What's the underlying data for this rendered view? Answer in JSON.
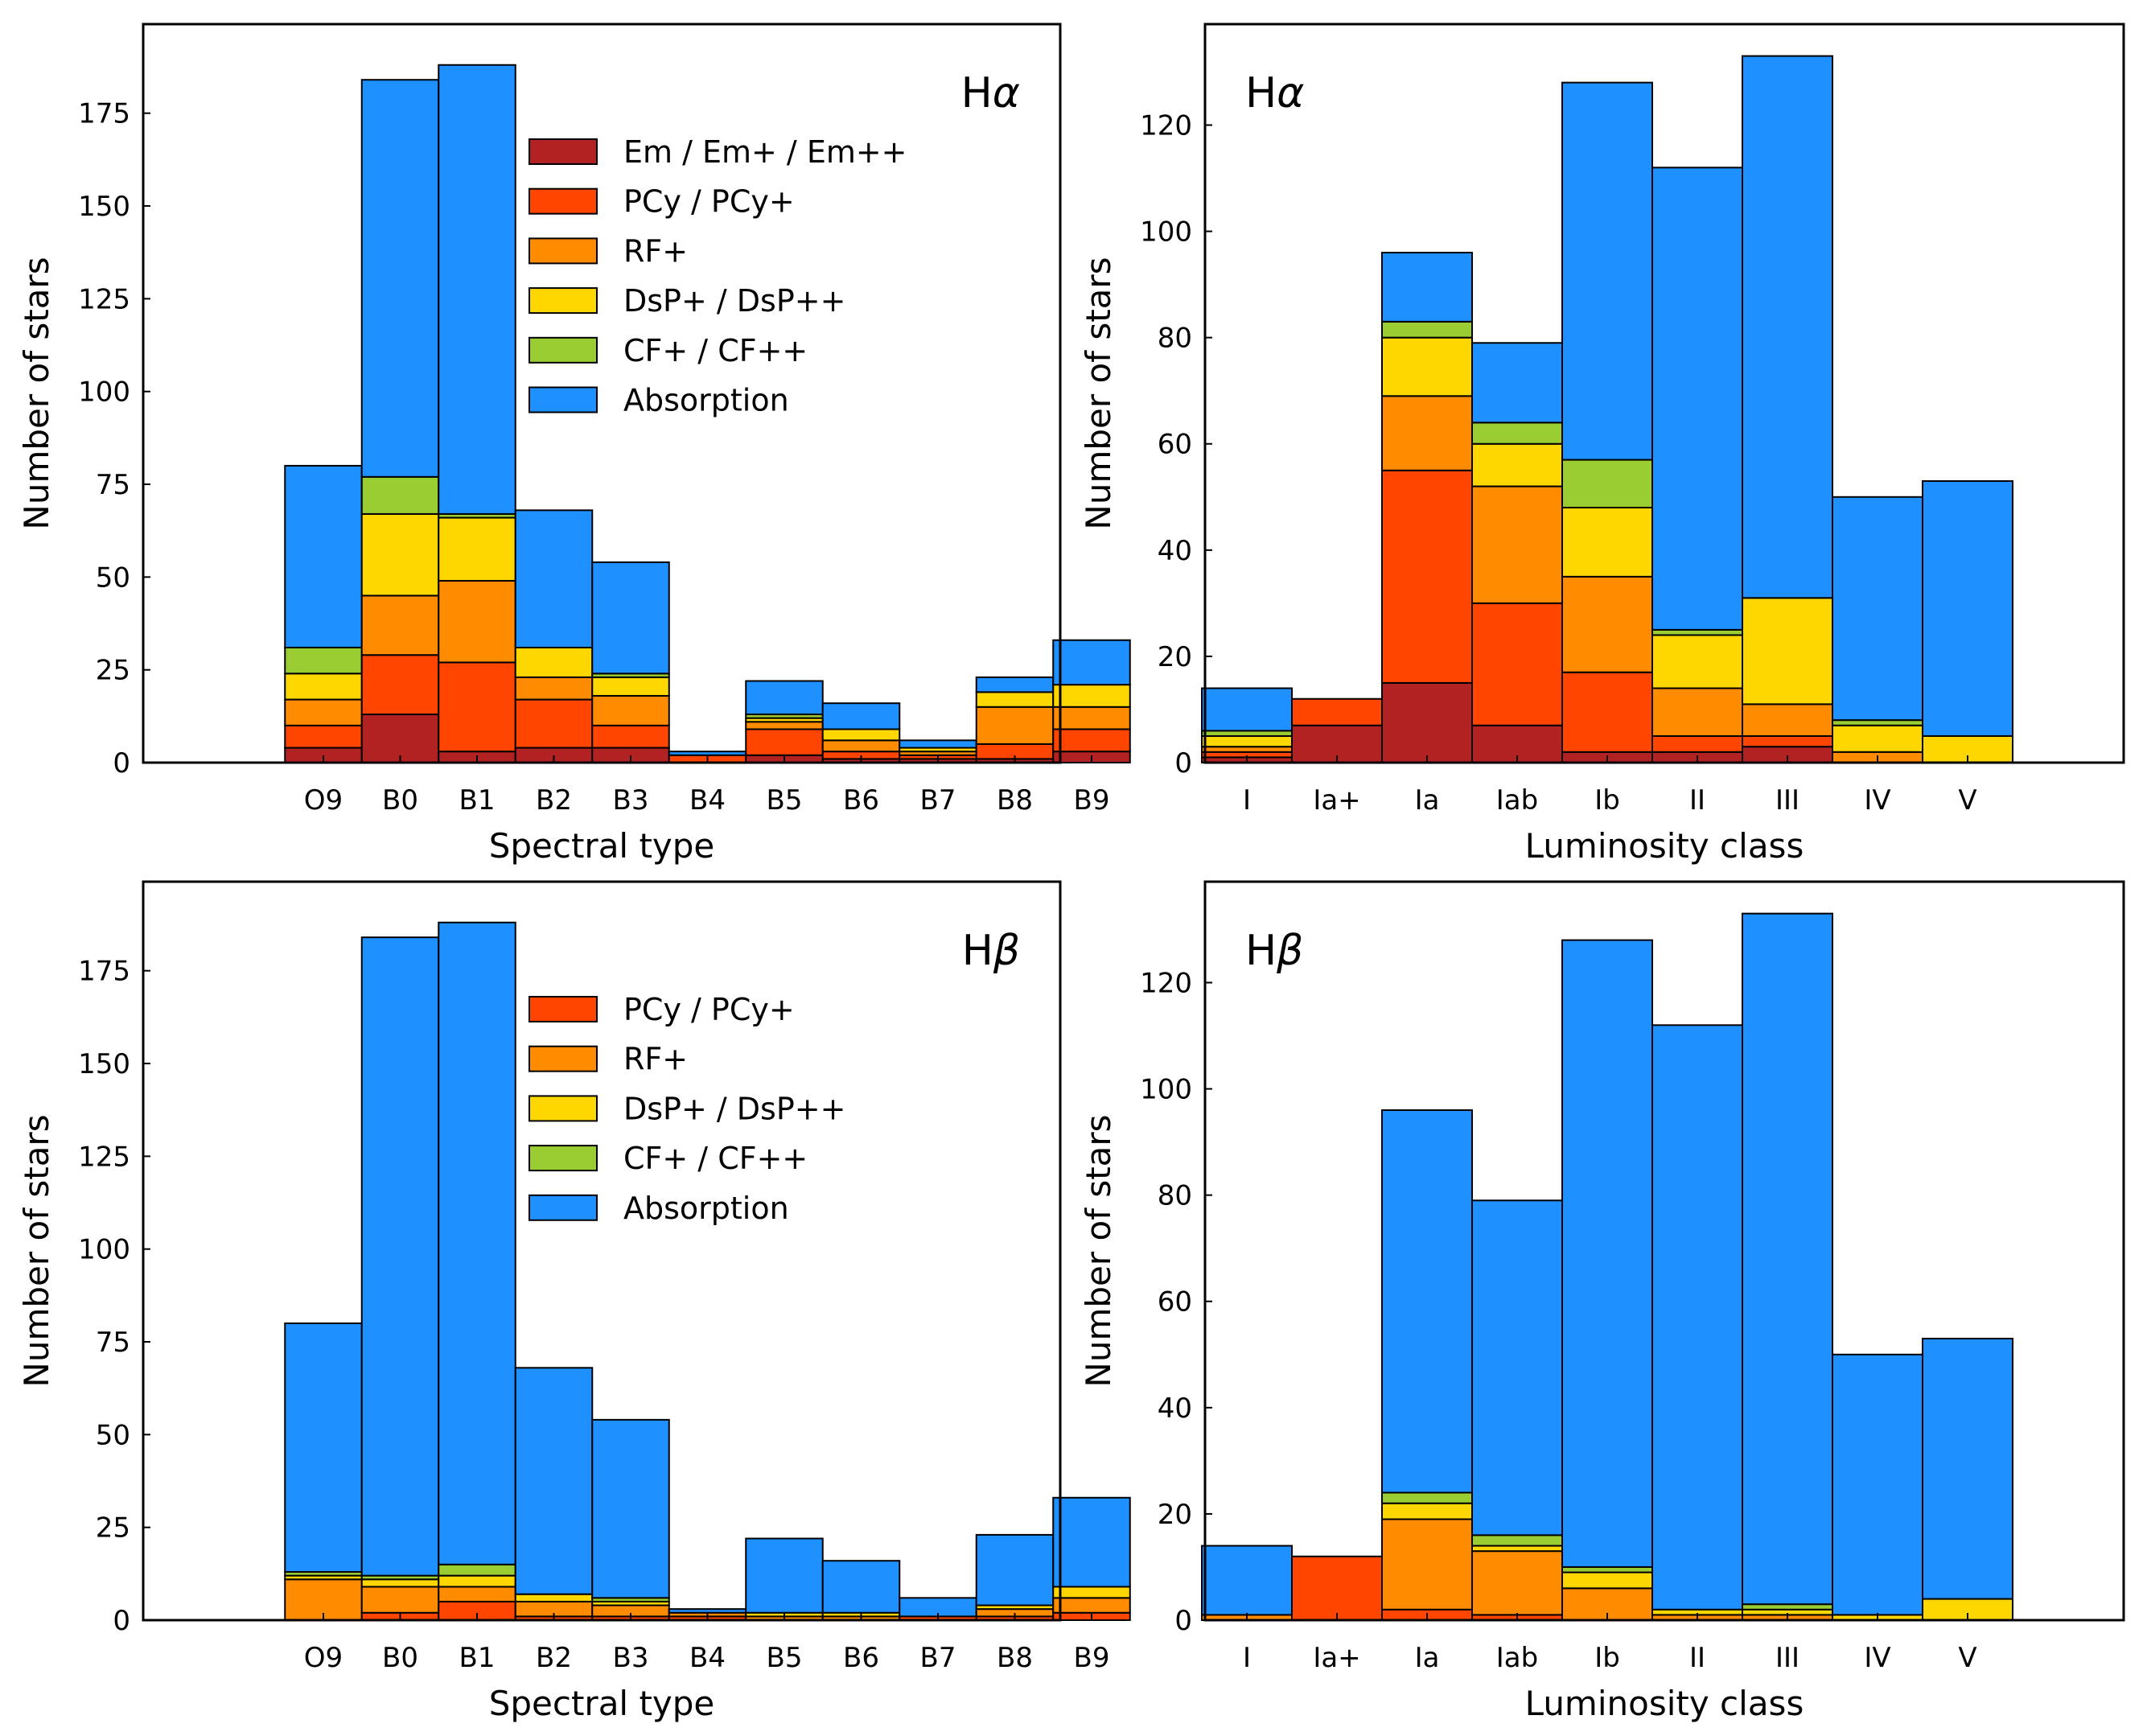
{
  "colors": {
    "Em / Em+ / Em++": "#b22222",
    "PCy / PCy+": "#ff4500",
    "RF+": "#ff8c00",
    "DsP+ / DsP++": "#ffd700",
    "CF+ / CF++": "#9acd32",
    "Absorption": "#1e90ff",
    "edge": "#000000"
  },
  "chart_data": [
    {
      "type": "bar",
      "stacked": true,
      "title": "Hα",
      "title_parts": {
        "main": "H",
        "greek": "α"
      },
      "title_position": "top-right",
      "xlabel": "Spectral type",
      "ylabel": "Number of stars",
      "ylim": [
        0,
        199
      ],
      "yticks": [
        0,
        25,
        50,
        75,
        100,
        125,
        150,
        175
      ],
      "legend_position": "center-right",
      "legend": [
        "Em / Em+ / Em++",
        "PCy / PCy+",
        "RF+",
        "DsP+ / DsP++",
        "CF+ / CF++",
        "Absorption"
      ],
      "categories": [
        "O9",
        "B0",
        "B1",
        "B2",
        "B3",
        "B4",
        "B5",
        "B6",
        "B7",
        "B8",
        "B9"
      ],
      "series": [
        {
          "name": "Em / Em+ / Em++",
          "values": [
            4,
            13,
            3,
            4,
            4,
            0,
            2,
            1,
            1,
            1,
            3
          ]
        },
        {
          "name": "PCy / PCy+",
          "values": [
            6,
            16,
            24,
            13,
            6,
            2,
            7,
            2,
            1,
            4,
            6
          ]
        },
        {
          "name": "RF+",
          "values": [
            7,
            16,
            22,
            6,
            8,
            0,
            2,
            3,
            1,
            10,
            6
          ]
        },
        {
          "name": "DsP+ / DsP++",
          "values": [
            7,
            22,
            17,
            8,
            5,
            0,
            1,
            3,
            1,
            4,
            6
          ]
        },
        {
          "name": "CF+ / CF++",
          "values": [
            7,
            10,
            1,
            0,
            1,
            0,
            1,
            0,
            0,
            0,
            0
          ]
        },
        {
          "name": "Absorption",
          "values": [
            49,
            107,
            121,
            37,
            30,
            1,
            9,
            7,
            2,
            4,
            12
          ]
        }
      ]
    },
    {
      "type": "bar",
      "stacked": true,
      "title": "Hα",
      "title_parts": {
        "main": "H",
        "greek": "α"
      },
      "title_position": "top-left",
      "xlabel": "Luminosity class",
      "ylabel": "Number of stars",
      "ylim": [
        0,
        139
      ],
      "yticks": [
        0,
        20,
        40,
        60,
        80,
        100,
        120
      ],
      "categories": [
        "I",
        "Ia+",
        "Ia",
        "Iab",
        "Ib",
        "II",
        "III",
        "IV",
        "V"
      ],
      "series": [
        {
          "name": "Em / Em+ / Em++",
          "values": [
            1,
            7,
            15,
            7,
            2,
            2,
            3,
            0,
            0
          ]
        },
        {
          "name": "PCy / PCy+",
          "values": [
            1,
            5,
            40,
            23,
            15,
            3,
            2,
            0,
            0
          ]
        },
        {
          "name": "RF+",
          "values": [
            1,
            0,
            14,
            22,
            18,
            9,
            6,
            2,
            0
          ]
        },
        {
          "name": "DsP+ / DsP++",
          "values": [
            2,
            0,
            11,
            8,
            13,
            10,
            20,
            5,
            5
          ]
        },
        {
          "name": "CF+ / CF++",
          "values": [
            1,
            0,
            3,
            4,
            9,
            1,
            0,
            1,
            0
          ]
        },
        {
          "name": "Absorption",
          "values": [
            8,
            0,
            13,
            15,
            71,
            87,
            102,
            42,
            48
          ]
        }
      ]
    },
    {
      "type": "bar",
      "stacked": true,
      "title": "Hβ",
      "title_parts": {
        "main": "H",
        "greek": "β"
      },
      "title_position": "top-right",
      "xlabel": "Spectral type",
      "ylabel": "Number of stars",
      "ylim": [
        0,
        199
      ],
      "yticks": [
        0,
        25,
        50,
        75,
        100,
        125,
        150,
        175
      ],
      "legend_position": "center-right",
      "legend": [
        "PCy / PCy+",
        "RF+",
        "DsP+ / DsP++",
        "CF+ / CF++",
        "Absorption"
      ],
      "categories": [
        "O9",
        "B0",
        "B1",
        "B2",
        "B3",
        "B4",
        "B5",
        "B6",
        "B7",
        "B8",
        "B9"
      ],
      "series": [
        {
          "name": "PCy / PCy+",
          "values": [
            0,
            2,
            5,
            1,
            1,
            1,
            0,
            0,
            1,
            1,
            2
          ]
        },
        {
          "name": "RF+",
          "values": [
            11,
            7,
            4,
            4,
            3,
            1,
            1,
            1,
            0,
            2,
            4
          ]
        },
        {
          "name": "DsP+ / DsP++",
          "values": [
            1,
            2,
            3,
            2,
            1,
            0,
            1,
            1,
            0,
            1,
            3
          ]
        },
        {
          "name": "CF+ / CF++",
          "values": [
            1,
            1,
            3,
            0,
            1,
            0,
            0,
            0,
            0,
            0,
            0
          ]
        },
        {
          "name": "Absorption",
          "values": [
            67,
            172,
            173,
            61,
            48,
            1,
            20,
            14,
            5,
            19,
            24
          ]
        }
      ]
    },
    {
      "type": "bar",
      "stacked": true,
      "title": "Hβ",
      "title_parts": {
        "main": "H",
        "greek": "β"
      },
      "title_position": "top-left",
      "xlabel": "Luminosity class",
      "ylabel": "Number of stars",
      "ylim": [
        0,
        139
      ],
      "yticks": [
        0,
        20,
        40,
        60,
        80,
        100,
        120
      ],
      "categories": [
        "I",
        "Ia+",
        "Ia",
        "Iab",
        "Ib",
        "II",
        "III",
        "IV",
        "V"
      ],
      "series": [
        {
          "name": "PCy / PCy+",
          "values": [
            0,
            12,
            2,
            1,
            0,
            0,
            0,
            0,
            0
          ]
        },
        {
          "name": "RF+",
          "values": [
            1,
            0,
            17,
            12,
            6,
            1,
            1,
            0,
            0
          ]
        },
        {
          "name": "DsP+ / DsP++",
          "values": [
            0,
            0,
            3,
            1,
            3,
            1,
            1,
            1,
            4
          ]
        },
        {
          "name": "CF+ / CF++",
          "values": [
            0,
            0,
            2,
            2,
            1,
            0,
            1,
            0,
            0
          ]
        },
        {
          "name": "Absorption",
          "values": [
            13,
            0,
            72,
            63,
            118,
            110,
            130,
            49,
            49
          ]
        }
      ]
    }
  ]
}
